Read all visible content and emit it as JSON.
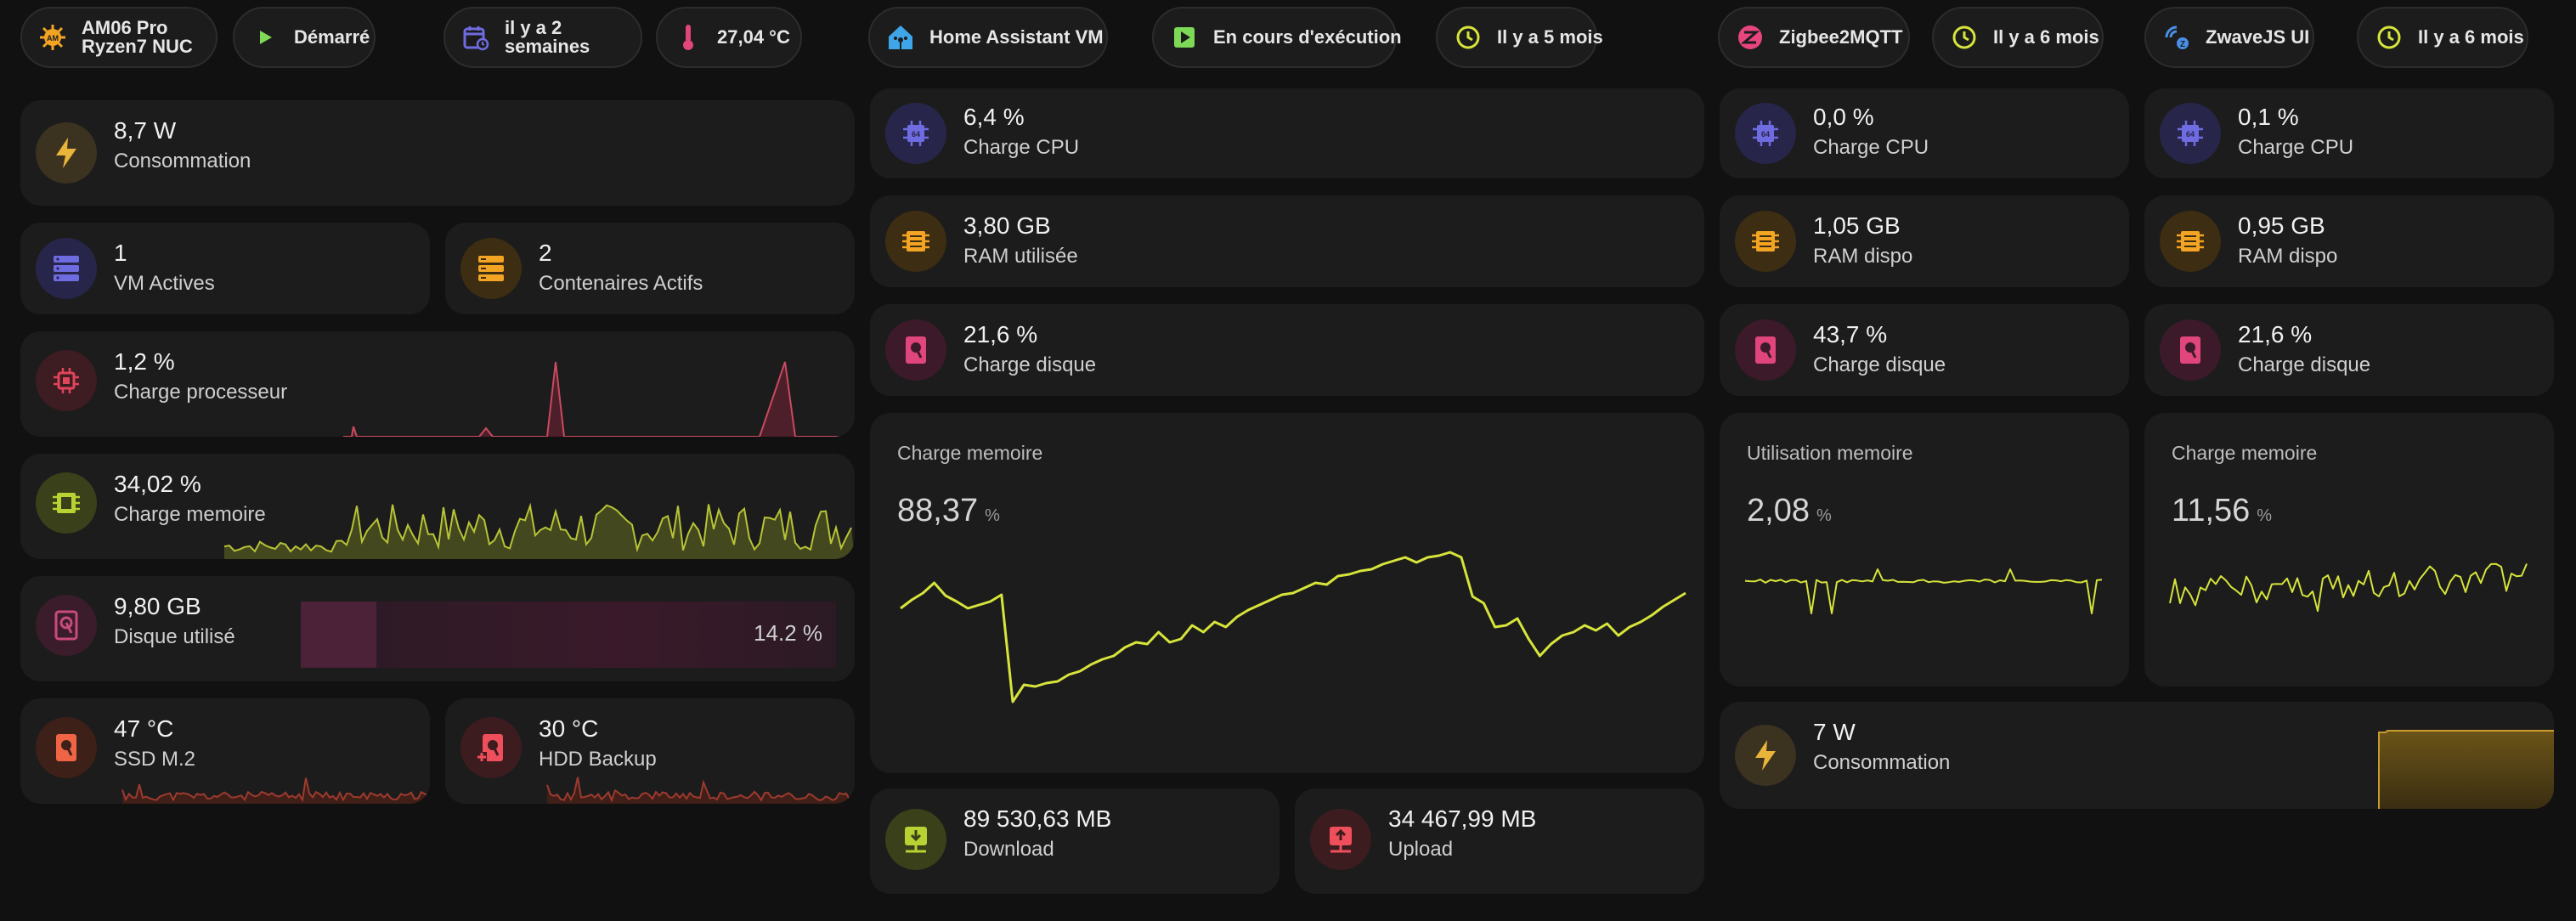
{
  "chips": {
    "nuc_name": [
      "AM06 Pro",
      "Ryzen7 NUC"
    ],
    "nuc_status": "Démarré",
    "nuc_uptime": [
      "il y a 2",
      "semaines"
    ],
    "nuc_temp": "27,04 °C",
    "ha_name": "Home Assistant VM",
    "ha_status": "En cours d'exécution",
    "ha_uptime": "Il y a 5 mois",
    "z2m_name": "Zigbee2MQTT",
    "z2m_uptime": "Il y a 6 mois",
    "zwave_name": "ZwaveJS UI",
    "zwave_uptime": "Il y a 6 mois"
  },
  "host": {
    "power": {
      "value": "8,7 W",
      "label": "Consommation"
    },
    "vms": {
      "value": "1",
      "label": "VM Actives"
    },
    "containers": {
      "value": "2",
      "label": "Contenaires Actifs"
    },
    "cpu": {
      "value": "1,2 %",
      "label": "Charge processeur"
    },
    "mem": {
      "value": "34,02 %",
      "label": "Charge memoire"
    },
    "disk": {
      "value": "9,80 GB",
      "label": "Disque utilisé",
      "bar_value": "14.2 %",
      "bar_fraction": 0.142
    },
    "ssd": {
      "value": "47 °C",
      "label": "SSD M.2"
    },
    "hdd": {
      "value": "30 °C",
      "label": "HDD Backup"
    }
  },
  "ha": {
    "cpu": {
      "value": "6,4 %",
      "label": "Charge CPU"
    },
    "ram": {
      "value": "3,80 GB",
      "label": "RAM utilisée"
    },
    "disk": {
      "value": "21,6 %",
      "label": "Charge disque"
    },
    "memgraph": {
      "title": "Charge memoire",
      "value": "88,37",
      "unit": "%"
    },
    "download": {
      "value": "89 530,63 MB",
      "label": "Download"
    },
    "upload": {
      "value": "34 467,99 MB",
      "label": "Upload"
    }
  },
  "z2m": {
    "cpu": {
      "value": "0,0 %",
      "label": "Charge CPU"
    },
    "ram": {
      "value": "1,05 GB",
      "label": "RAM dispo"
    },
    "disk": {
      "value": "43,7 %",
      "label": "Charge disque"
    },
    "memgraph": {
      "title": "Utilisation memoire",
      "value": "2,08",
      "unit": "%"
    }
  },
  "zwave": {
    "cpu": {
      "value": "0,1 %",
      "label": "Charge CPU"
    },
    "ram": {
      "value": "0,95 GB",
      "label": "RAM dispo"
    },
    "disk": {
      "value": "21,6 %",
      "label": "Charge disque"
    },
    "memgraph": {
      "title": "Charge memoire",
      "value": "11,56",
      "unit": "%"
    }
  },
  "zigbee_power": {
    "value": "7 W",
    "label": "Consommation"
  },
  "colors": {
    "accent_green": "#d6e43b",
    "bolt": "#e9b43a",
    "cpu_purple": "#6f6be0",
    "ram_orange": "#f2a422",
    "disk_pink": "#e0457b",
    "temp_red": "#ef6445",
    "play_green": "#7ed957",
    "zigbee_pink": "#e6457d",
    "zwave_blue": "#4a8fe7",
    "card_bg": "#1c1c1c",
    "page_bg": "#111111"
  },
  "icons": [
    "bolt-icon",
    "server-icon",
    "containers-icon",
    "chip-icon",
    "memory-icon",
    "harddisk-icon",
    "download-icon",
    "upload-icon",
    "play-icon",
    "clock-icon",
    "thermometer-icon",
    "calendar-icon",
    "home-icon",
    "zigbee-icon",
    "zwave-icon",
    "cpu-64-icon"
  ]
}
